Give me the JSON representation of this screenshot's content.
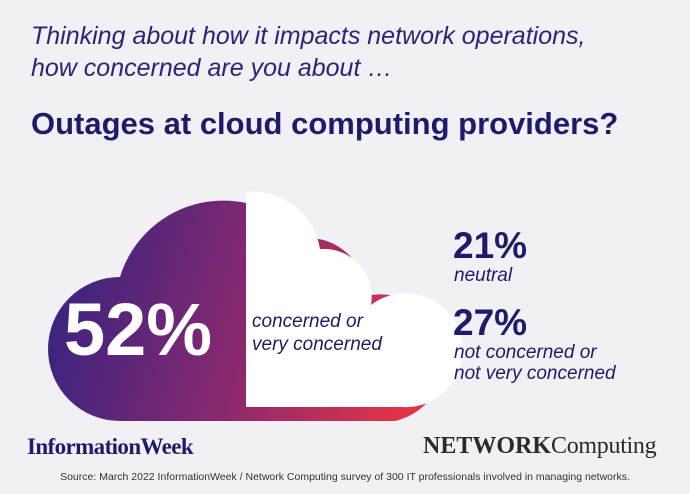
{
  "chart_data": {
    "type": "pie",
    "subtitle_lines": [
      "Thinking about how it impacts network operations,",
      "how concerned are you about …"
    ],
    "title": "Outages at cloud computing providers?",
    "slices": [
      {
        "label_lines": [
          "concerned or",
          "very concerned"
        ],
        "display": "52%",
        "value": 52
      },
      {
        "label_lines": [
          "neutral"
        ],
        "display": "21%",
        "value": 21
      },
      {
        "label_lines": [
          "not concerned or",
          "not very concerned"
        ],
        "display": "27%",
        "value": 27
      }
    ],
    "colors": {
      "gradient_start": "#2e2383",
      "gradient_mid": "#86286f",
      "gradient_end": "#e0334a",
      "cloud_fill": "#ffffff",
      "text_dark": "#1f1b6b"
    }
  },
  "logos": {
    "informationweek": "InformationWeek",
    "networkcomputing_bold": "NETWORK",
    "networkcomputing_regular": "Computing"
  },
  "source": "Source: March 2022 InformationWeek / Network Computing survey of 300 IT professionals involved in managing networks."
}
